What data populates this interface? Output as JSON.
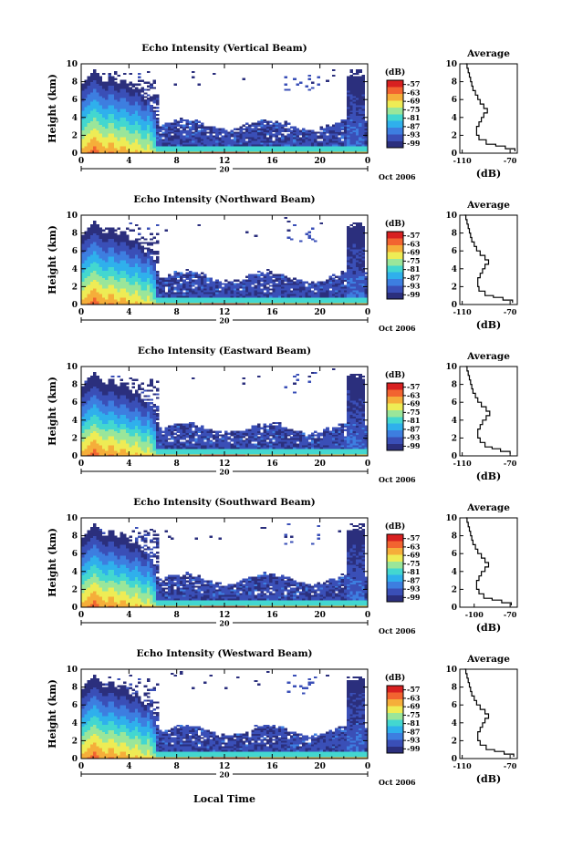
{
  "chart_data": {
    "type": "heatmap",
    "xlabel": "Local Time",
    "date_label": "Oct 2006",
    "day_label": "20",
    "x_range": [
      0,
      24
    ],
    "x_ticks": [
      "0",
      "4",
      "8",
      "12",
      "16",
      "20",
      "0"
    ],
    "y_range": [
      0,
      10
    ],
    "y_ticks": [
      "0",
      "2",
      "4",
      "6",
      "8",
      "10"
    ],
    "ylabel": "Height (km)",
    "colorbar": {
      "unit": "(dB)",
      "tick_labels": [
        "-57",
        "-63",
        "-69",
        "-75",
        "-81",
        "-87",
        "-93",
        "-99"
      ],
      "range": [
        -102,
        -54
      ],
      "colors": [
        "#2b2f7d",
        "#3a4fb7",
        "#3d7ee0",
        "#2fb0ec",
        "#43d7d0",
        "#9ae69a",
        "#eeec55",
        "#f5ae3a",
        "#f26430",
        "#d82020"
      ]
    },
    "panels": [
      {
        "title": "Echo Intensity (Vertical Beam)",
        "profile": {
          "title": "Average",
          "xlabel": "(dB)",
          "x_ticks": [
            "-110",
            "-70"
          ],
          "x_range": [
            -112,
            -64
          ],
          "heights": [
            0.2,
            0.5,
            0.8,
            1.0,
            1.5,
            2.0,
            2.5,
            3.0,
            3.5,
            4.0,
            4.5,
            5.0,
            5.5,
            6.0,
            6.5,
            7.0,
            7.5,
            8.0,
            8.5,
            9.0,
            9.5,
            10.0
          ],
          "values": [
            -66,
            -74,
            -82,
            -90,
            -96,
            -98,
            -98,
            -96,
            -94,
            -92,
            -89,
            -92,
            -95,
            -97,
            -99,
            -101,
            -102,
            -103,
            -104,
            -105,
            -106,
            -107
          ]
        }
      },
      {
        "title": "Echo Intensity (Northward Beam)",
        "profile": {
          "title": "Average",
          "xlabel": "(dB)",
          "x_ticks": [
            "-110",
            "-70"
          ],
          "x_range": [
            -112,
            -64
          ],
          "heights": [
            0.2,
            0.5,
            0.8,
            1.0,
            1.5,
            2.0,
            2.5,
            3.0,
            3.5,
            4.0,
            4.5,
            5.0,
            5.5,
            6.0,
            6.5,
            7.0,
            7.5,
            8.0,
            8.5,
            9.0,
            9.5,
            10.0
          ],
          "values": [
            -68,
            -76,
            -84,
            -91,
            -96,
            -97,
            -97,
            -95,
            -93,
            -91,
            -88,
            -91,
            -95,
            -98,
            -100,
            -102,
            -103,
            -104,
            -105,
            -106,
            -107,
            -108
          ]
        }
      },
      {
        "title": "Echo Intensity (Eastward Beam)",
        "profile": {
          "title": "Average",
          "xlabel": "(dB)",
          "x_ticks": [
            "-110",
            "-70"
          ],
          "x_range": [
            -112,
            -64
          ],
          "heights": [
            0.2,
            0.5,
            0.8,
            1.0,
            1.5,
            2.0,
            2.5,
            3.0,
            3.5,
            4.0,
            4.5,
            5.0,
            5.5,
            6.0,
            6.5,
            7.0,
            7.5,
            8.0,
            8.5,
            9.0,
            9.5,
            10.0
          ],
          "values": [
            -70,
            -78,
            -85,
            -91,
            -95,
            -97,
            -97,
            -95,
            -93,
            -90,
            -87,
            -90,
            -94,
            -97,
            -99,
            -101,
            -102,
            -103,
            -104,
            -105,
            -106,
            -107
          ]
        }
      },
      {
        "title": "Echo Intensity (Southward Beam)",
        "profile": {
          "title": "Average",
          "xlabel": "(dB)",
          "x_ticks": [
            "-100",
            "-70"
          ],
          "x_range": [
            -112,
            -64
          ],
          "heights": [
            0.2,
            0.5,
            0.8,
            1.0,
            1.5,
            2.0,
            2.5,
            3.0,
            3.5,
            4.0,
            4.5,
            5.0,
            5.5,
            6.0,
            6.5,
            7.0,
            7.5,
            8.0,
            8.5,
            9.0,
            9.5,
            10.0
          ],
          "values": [
            -69,
            -77,
            -85,
            -92,
            -96,
            -98,
            -98,
            -96,
            -94,
            -91,
            -88,
            -91,
            -94,
            -97,
            -99,
            -101,
            -102,
            -103,
            -104,
            -105,
            -106,
            -107
          ]
        }
      },
      {
        "title": "Echo Intensity (Westward Beam)",
        "profile": {
          "title": "Average",
          "xlabel": "(dB)",
          "x_ticks": [
            "-110",
            "-70"
          ],
          "x_range": [
            -112,
            -64
          ],
          "heights": [
            0.2,
            0.5,
            0.8,
            1.0,
            1.5,
            2.0,
            2.5,
            3.0,
            3.5,
            4.0,
            4.5,
            5.0,
            5.5,
            6.0,
            6.5,
            7.0,
            7.5,
            8.0,
            8.5,
            9.0,
            9.5,
            10.0
          ],
          "values": [
            -67,
            -75,
            -83,
            -90,
            -95,
            -97,
            -97,
            -95,
            -93,
            -91,
            -88,
            -91,
            -95,
            -98,
            -100,
            -102,
            -103,
            -104,
            -105,
            -106,
            -107,
            -108
          ]
        }
      }
    ]
  }
}
